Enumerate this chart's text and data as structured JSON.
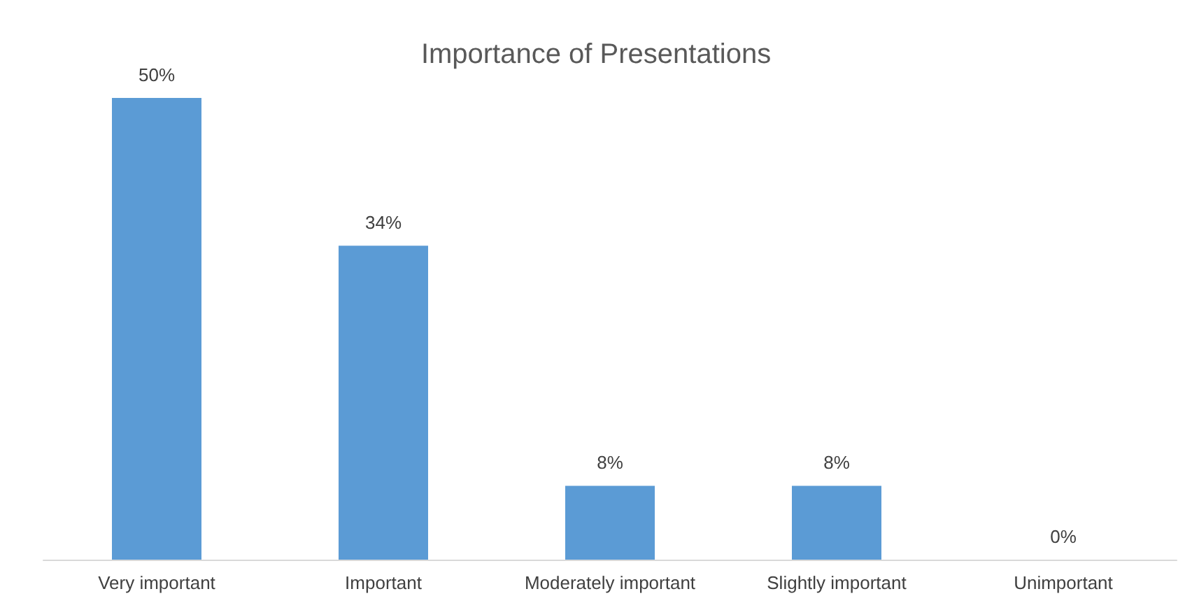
{
  "chart_data": {
    "type": "bar",
    "title": "Importance of Presentations",
    "categories": [
      "Very important",
      "Important",
      "Moderately important",
      "Slightly important",
      "Unimportant"
    ],
    "values": [
      50,
      34,
      8,
      8,
      0
    ],
    "value_labels": [
      "50%",
      "34%",
      "8%",
      "8%",
      "0%"
    ],
    "color": "#5b9bd5"
  }
}
